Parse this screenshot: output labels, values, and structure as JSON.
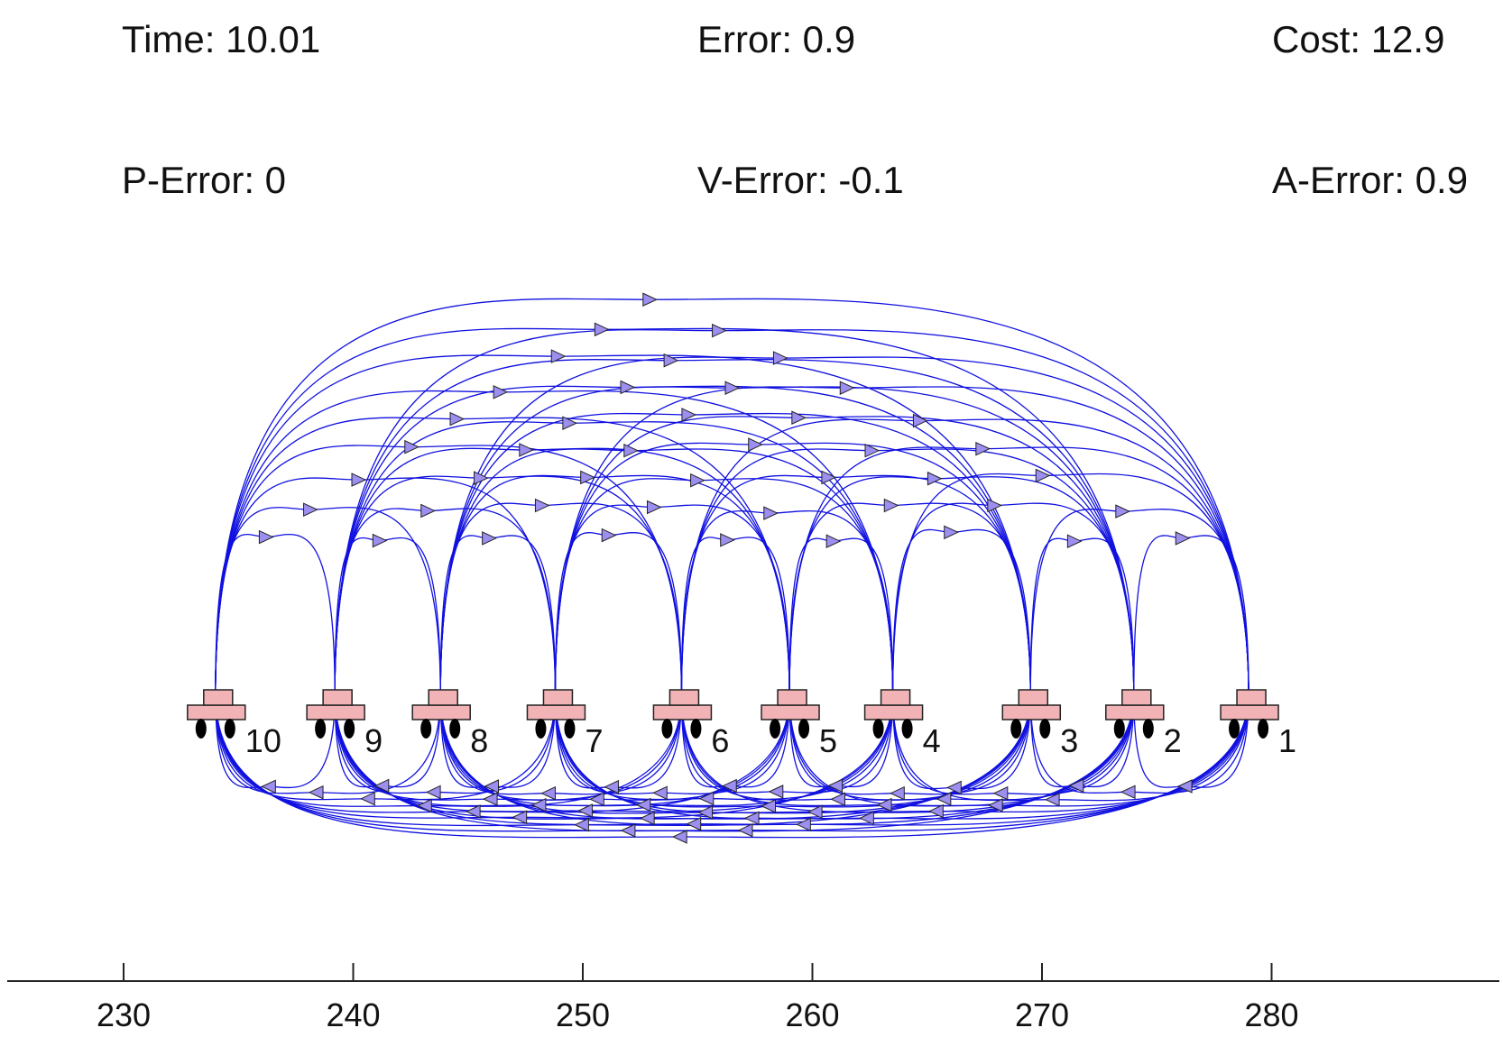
{
  "stats": {
    "time": "Time: 10.01",
    "error": "Error: 0.9",
    "cost": "Cost: 12.9",
    "p_error": "P-Error: 0",
    "v_error": "V-Error: -0.1",
    "a_error": "A-Error: 0.9"
  },
  "colors": {
    "edge": "#1010e0",
    "vehicle_body": "#f2b3b6",
    "vehicle_outline": "#222222",
    "wheel": "#000000",
    "arrow_fill": "#9c8ff0",
    "axis": "#222222"
  },
  "chart_data": {
    "type": "network",
    "axis": {
      "ticks": [
        230,
        240,
        250,
        260,
        270,
        280
      ],
      "tick_labels": [
        "230",
        "240",
        "250",
        "260",
        "270",
        "280"
      ],
      "xlim": [
        225,
        290
      ]
    },
    "vehicles": [
      {
        "id": "1",
        "position": 279
      },
      {
        "id": "2",
        "position": 274
      },
      {
        "id": "3",
        "position": 269.5
      },
      {
        "id": "4",
        "position": 263.5
      },
      {
        "id": "5",
        "position": 259
      },
      {
        "id": "6",
        "position": 254.3
      },
      {
        "id": "7",
        "position": 248.8
      },
      {
        "id": "8",
        "position": 243.8
      },
      {
        "id": "9",
        "position": 239.2
      },
      {
        "id": "10",
        "position": 234
      }
    ],
    "topology": "all-to-all directed communication links"
  }
}
